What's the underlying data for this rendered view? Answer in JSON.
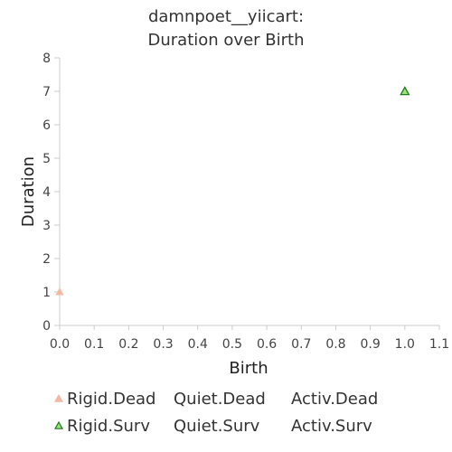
{
  "chart_data": {
    "type": "scatter",
    "title_lines": [
      "damnpoet__yiicart:",
      "Duration over Birth"
    ],
    "xlabel": "Birth",
    "ylabel": "Duration",
    "xlim": [
      0,
      1.1
    ],
    "ylim": [
      0,
      8
    ],
    "x_ticks": [
      "0.0",
      "0.1",
      "0.2",
      "0.3",
      "0.4",
      "0.5",
      "0.6",
      "0.7",
      "0.8",
      "0.9",
      "1.0",
      "1.1"
    ],
    "y_ticks": [
      "0",
      "1",
      "2",
      "3",
      "4",
      "5",
      "6",
      "7",
      "8"
    ],
    "grid": false,
    "legend_position": "bottom",
    "series": [
      {
        "name": "Rigid.Dead",
        "marker": "triangle",
        "fill": "#f4b9a3",
        "stroke": "#f4b9a3",
        "points": [
          {
            "x": 0.0,
            "y": 1.0
          }
        ]
      },
      {
        "name": "Quiet.Dead",
        "marker": "none",
        "fill": "#ffffff",
        "stroke": "#ffffff",
        "points": []
      },
      {
        "name": "Activ.Dead",
        "marker": "none",
        "fill": "#ffffff",
        "stroke": "#ffffff",
        "points": []
      },
      {
        "name": "Rigid.Surv",
        "marker": "triangle",
        "fill": "#9be27c",
        "stroke": "#1f7a1f",
        "points": [
          {
            "x": 1.0,
            "y": 7.0
          }
        ]
      },
      {
        "name": "Quiet.Surv",
        "marker": "none",
        "fill": "#ffffff",
        "stroke": "#ffffff",
        "points": []
      },
      {
        "name": "Activ.Surv",
        "marker": "none",
        "fill": "#ffffff",
        "stroke": "#ffffff",
        "points": []
      }
    ]
  }
}
